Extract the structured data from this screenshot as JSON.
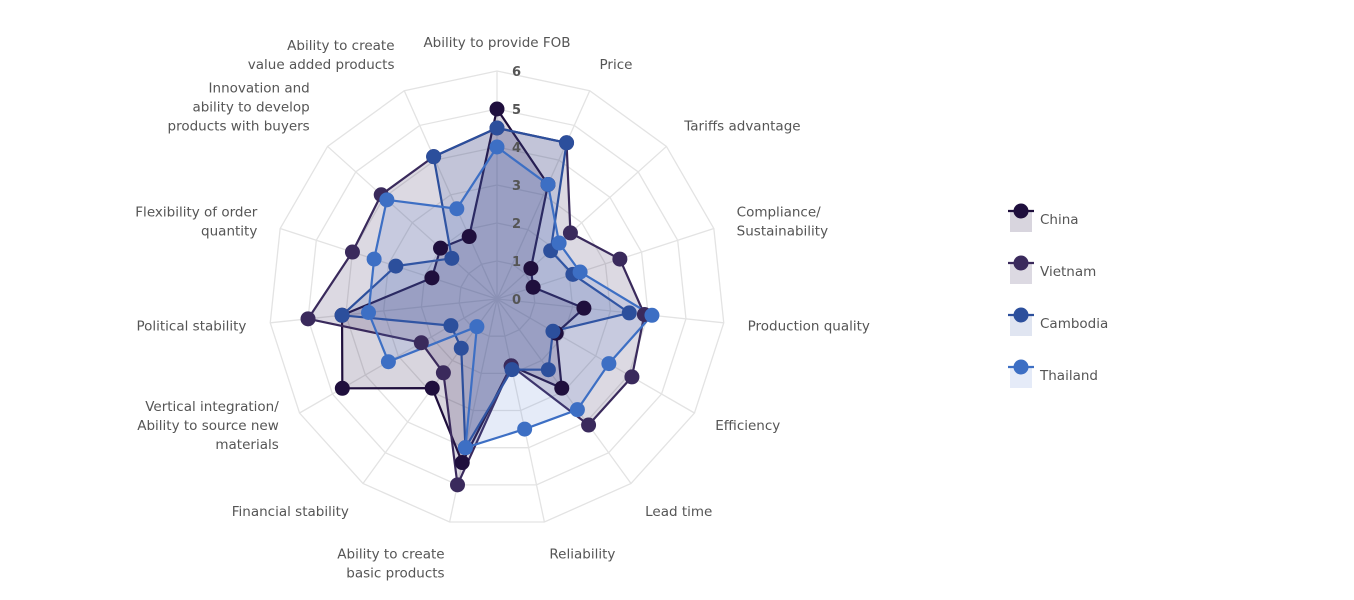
{
  "chart_data": {
    "type": "radar",
    "title": "",
    "axes": [
      [
        "Ability to provide FOB"
      ],
      [
        "Price"
      ],
      [
        "Tariffs advantage"
      ],
      [
        "Compliance/",
        "Sustainability"
      ],
      [
        "Production quality"
      ],
      [
        "Efficiency"
      ],
      [
        "Lead time"
      ],
      [
        "Reliability"
      ],
      [
        "Ability to create",
        "basic products"
      ],
      [
        "Financial stability"
      ],
      [
        "Vertical integration/",
        "Ability to source new",
        " materials"
      ],
      [
        "Political stability"
      ],
      [
        "Flexibility of order",
        "quantity"
      ],
      [
        "Innovation and",
        "ability to develop",
        "products with buyers"
      ],
      [
        "Ability to create",
        "value added products"
      ]
    ],
    "rlim": [
      0,
      6
    ],
    "ticks": [
      "0",
      "1",
      "2",
      "3",
      "4",
      "5",
      "6"
    ],
    "series": [
      {
        "name": "China",
        "color": "#1f0f3d",
        "fill": "rgba(40,20,70,0.18)",
        "values": [
          5.0,
          3.3,
          1.2,
          1.0,
          2.3,
          1.8,
          2.9,
          1.8,
          4.4,
          2.9,
          4.7,
          4.1,
          1.8,
          2.0,
          1.8
        ]
      },
      {
        "name": "Vietnam",
        "color": "#3a2a5c",
        "fill": "rgba(60,45,95,0.18)",
        "values": [
          4.5,
          4.5,
          2.6,
          3.4,
          3.9,
          4.1,
          4.1,
          1.8,
          5.0,
          2.4,
          2.3,
          5.0,
          4.0,
          4.1,
          4.1
        ]
      },
      {
        "name": "Cambodia",
        "color": "#2c4f9c",
        "fill": "rgba(45,80,160,0.15)",
        "values": [
          4.5,
          4.5,
          1.9,
          2.1,
          3.5,
          1.7,
          2.3,
          1.9,
          4.0,
          1.6,
          1.4,
          4.1,
          2.8,
          1.6,
          4.1
        ]
      },
      {
        "name": "Thailand",
        "color": "#3d6fc4",
        "fill": "rgba(80,120,205,0.15)",
        "values": [
          4.0,
          3.3,
          2.2,
          2.3,
          4.1,
          3.4,
          3.6,
          3.5,
          4.0,
          0.9,
          3.3,
          3.4,
          3.4,
          3.9,
          2.6
        ]
      }
    ]
  }
}
